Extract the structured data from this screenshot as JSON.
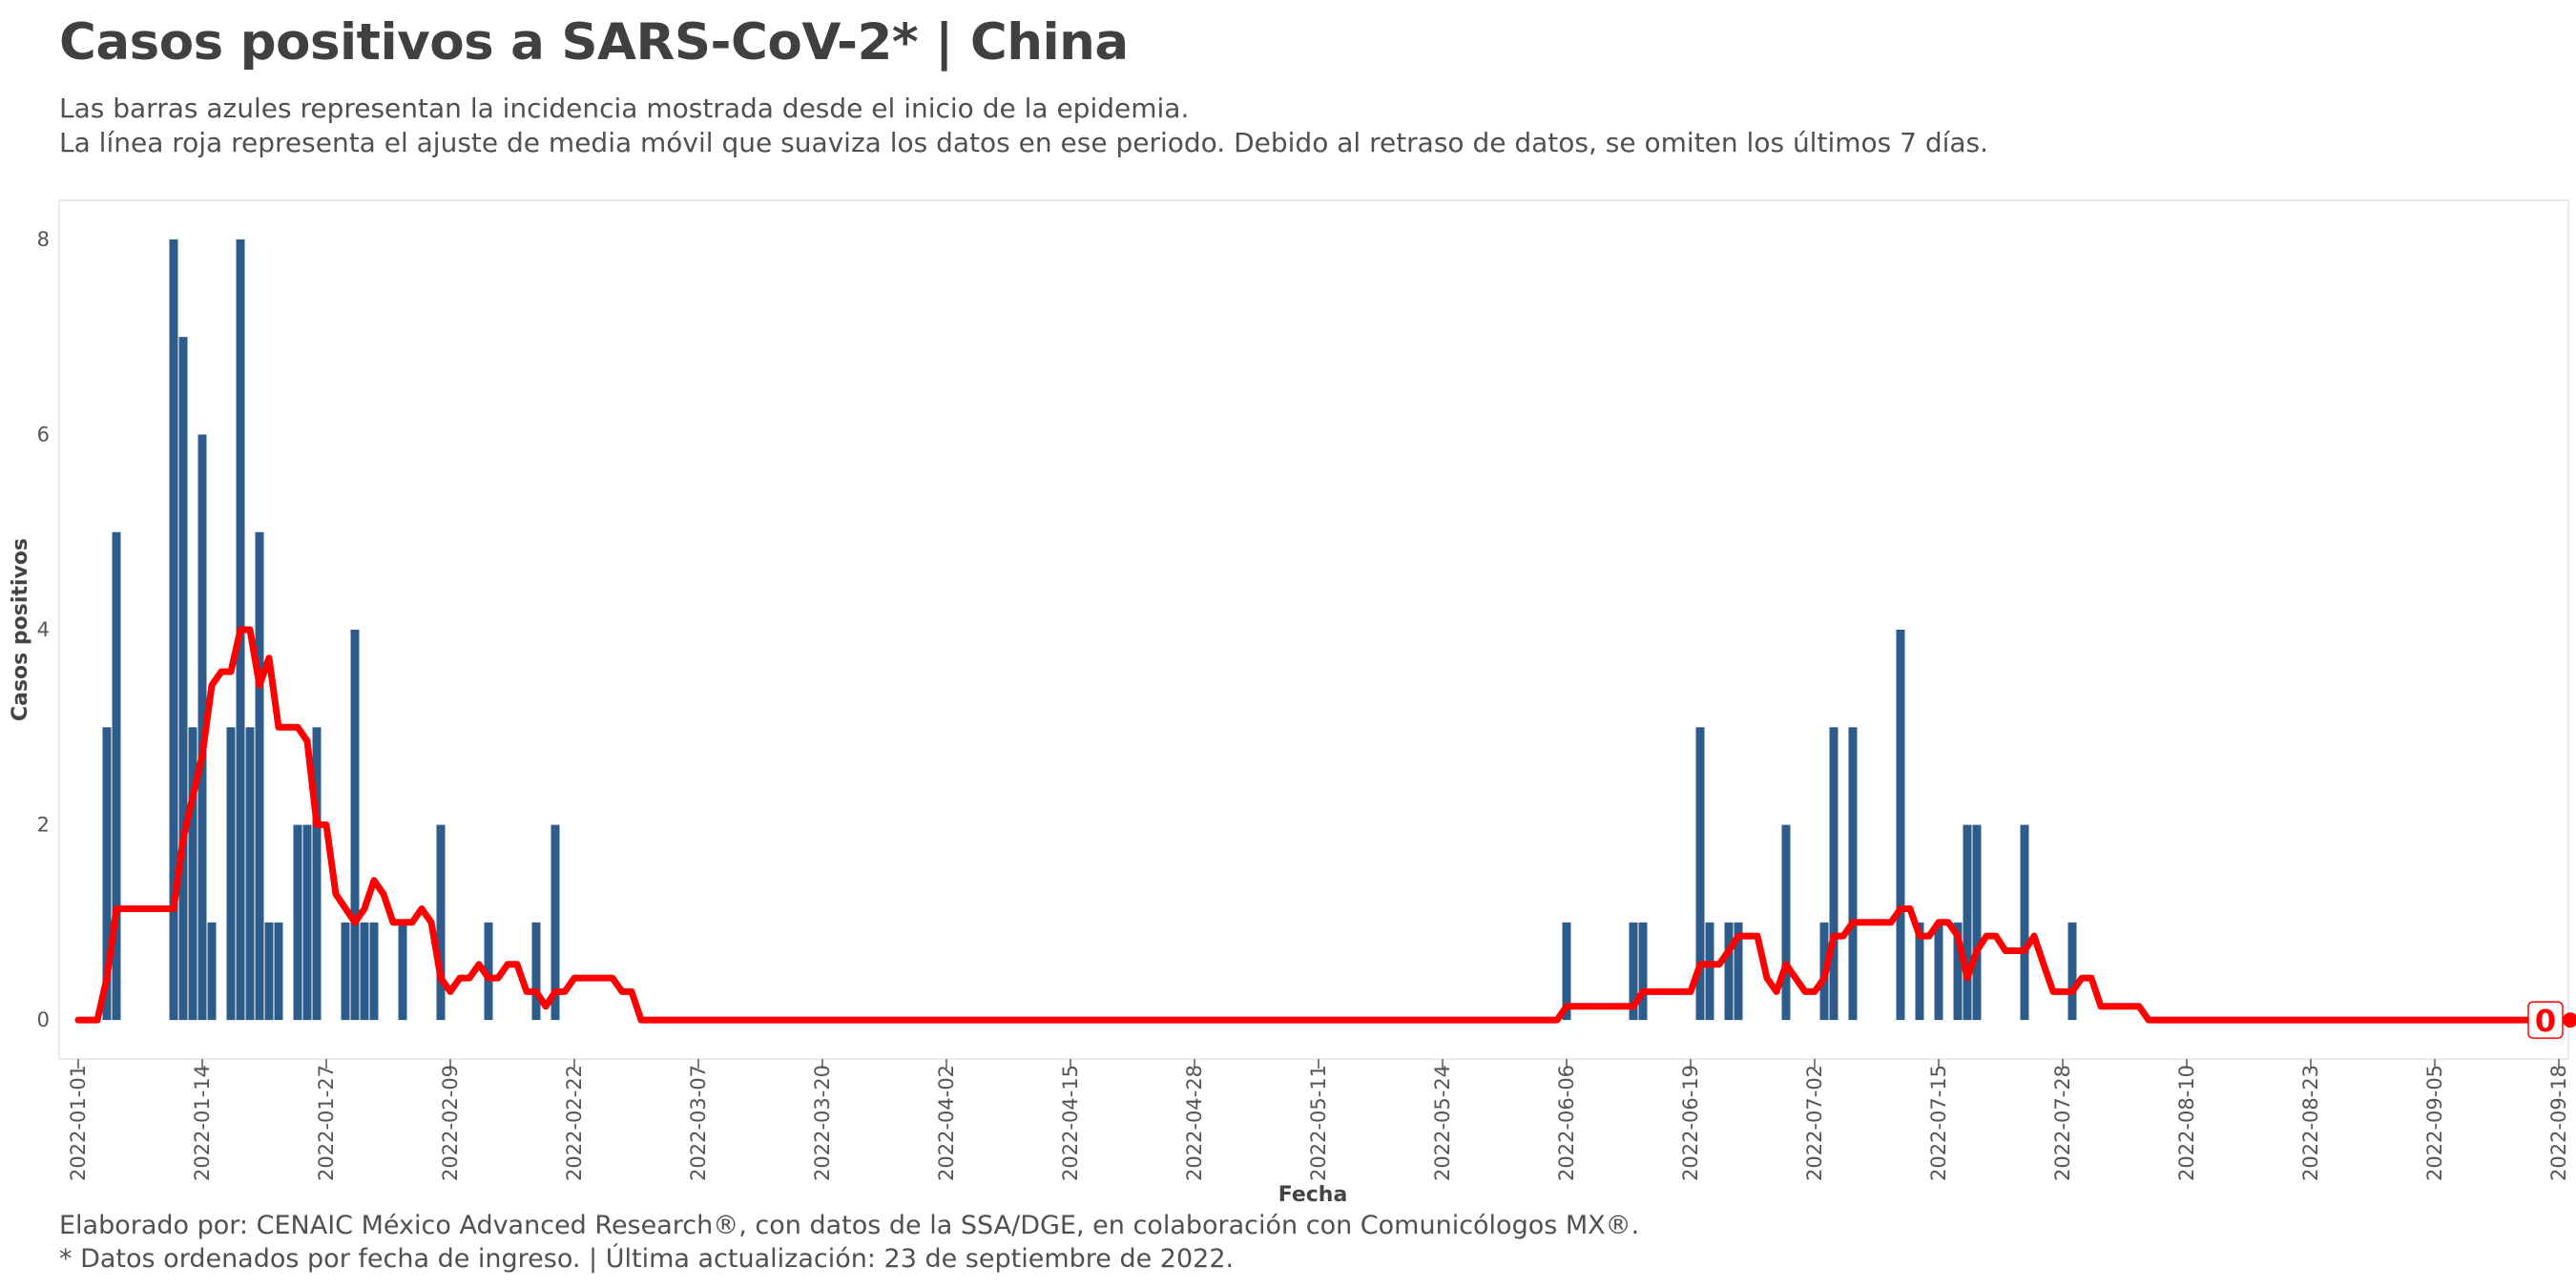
{
  "header": {
    "title": "Casos positivos a SARS-CoV-2* | China",
    "subtitle_line1": "Las barras azules representan la incidencia mostrada desde el inicio de la epidemia.",
    "subtitle_line2": "La línea roja representa el ajuste de media móvil que suaviza los datos en ese periodo. Debido al retraso de datos, se omiten los últimos 7 días."
  },
  "footer": {
    "caption_line1": "Elaborado por: CENAIC México Advanced Research®, con datos de la SSA/DGE, en colaboración con Comunicólogos MX®.",
    "caption_line2": "* Datos ordenados por fecha de ingreso. | Última actualización: 23 de septiembre de 2022."
  },
  "colors": {
    "bars": "#2d5b8a",
    "line": "#ff0000",
    "panel_border": "#e3e3e3"
  },
  "chart_data": {
    "type": "bar",
    "xlabel": "Fecha",
    "ylabel": "Casos positivos",
    "x_range": [
      "2021-12-30",
      "2022-09-19"
    ],
    "ylim": [
      -0.4,
      8.4
    ],
    "y_ticks": [
      0,
      2,
      4,
      6,
      8
    ],
    "x_ticks": [
      "2022-01-01",
      "2022-01-14",
      "2022-01-27",
      "2022-02-09",
      "2022-02-22",
      "2022-03-07",
      "2022-03-20",
      "2022-04-02",
      "2022-04-15",
      "2022-04-28",
      "2022-05-11",
      "2022-05-24",
      "2022-06-06",
      "2022-06-19",
      "2022-07-02",
      "2022-07-15",
      "2022-07-28",
      "2022-08-10",
      "2022-08-23",
      "2022-09-05",
      "2022-09-18"
    ],
    "grid": false,
    "bars": {
      "name": "Incidencia",
      "dates": [
        "2022-01-04",
        "2022-01-05",
        "2022-01-11",
        "2022-01-12",
        "2022-01-13",
        "2022-01-14",
        "2022-01-15",
        "2022-01-17",
        "2022-01-18",
        "2022-01-19",
        "2022-01-20",
        "2022-01-21",
        "2022-01-22",
        "2022-01-24",
        "2022-01-25",
        "2022-01-26",
        "2022-01-29",
        "2022-01-30",
        "2022-01-31",
        "2022-02-01",
        "2022-02-04",
        "2022-02-08",
        "2022-02-13",
        "2022-02-18",
        "2022-02-20",
        "2022-06-06",
        "2022-06-13",
        "2022-06-14",
        "2022-06-20",
        "2022-06-21",
        "2022-06-23",
        "2022-06-24",
        "2022-06-29",
        "2022-07-03",
        "2022-07-04",
        "2022-07-06",
        "2022-07-11",
        "2022-07-13",
        "2022-07-15",
        "2022-07-17",
        "2022-07-18",
        "2022-07-19",
        "2022-07-24",
        "2022-07-29"
      ],
      "values": [
        3,
        5,
        8,
        7,
        3,
        6,
        1,
        3,
        8,
        3,
        5,
        1,
        1,
        2,
        2,
        3,
        1,
        4,
        1,
        1,
        1,
        2,
        1,
        1,
        2,
        1,
        1,
        1,
        3,
        1,
        1,
        1,
        2,
        1,
        3,
        3,
        4,
        1,
        1,
        1,
        2,
        2,
        2,
        1
      ]
    },
    "moving_average": {
      "name": "Media móvil",
      "points": [
        [
          "2022-01-01",
          0
        ],
        [
          "2022-01-03",
          0
        ],
        [
          "2022-01-04",
          0.43
        ],
        [
          "2022-01-05",
          1.14
        ],
        [
          "2022-01-11",
          1.14
        ],
        [
          "2022-01-12",
          1.86
        ],
        [
          "2022-01-13",
          2.29
        ],
        [
          "2022-01-14",
          2.71
        ],
        [
          "2022-01-15",
          3.43
        ],
        [
          "2022-01-16",
          3.57
        ],
        [
          "2022-01-17",
          3.57
        ],
        [
          "2022-01-18",
          4.0
        ],
        [
          "2022-01-19",
          4.0
        ],
        [
          "2022-01-20",
          3.43
        ],
        [
          "2022-01-21",
          3.71
        ],
        [
          "2022-01-22",
          3.0
        ],
        [
          "2022-01-24",
          3.0
        ],
        [
          "2022-01-25",
          2.86
        ],
        [
          "2022-01-26",
          2.0
        ],
        [
          "2022-01-27",
          2.0
        ],
        [
          "2022-01-28",
          1.29
        ],
        [
          "2022-01-30",
          1.0
        ],
        [
          "2022-01-31",
          1.14
        ],
        [
          "2022-02-01",
          1.43
        ],
        [
          "2022-02-02",
          1.29
        ],
        [
          "2022-02-03",
          1.0
        ],
        [
          "2022-02-05",
          1.0
        ],
        [
          "2022-02-06",
          1.14
        ],
        [
          "2022-02-07",
          1.0
        ],
        [
          "2022-02-08",
          0.43
        ],
        [
          "2022-02-09",
          0.29
        ],
        [
          "2022-02-10",
          0.43
        ],
        [
          "2022-02-11",
          0.43
        ],
        [
          "2022-02-12",
          0.57
        ],
        [
          "2022-02-13",
          0.43
        ],
        [
          "2022-02-14",
          0.43
        ],
        [
          "2022-02-15",
          0.57
        ],
        [
          "2022-02-16",
          0.57
        ],
        [
          "2022-02-17",
          0.29
        ],
        [
          "2022-02-18",
          0.29
        ],
        [
          "2022-02-19",
          0.14
        ],
        [
          "2022-02-20",
          0.29
        ],
        [
          "2022-02-21",
          0.29
        ],
        [
          "2022-02-22",
          0.43
        ],
        [
          "2022-02-26",
          0.43
        ],
        [
          "2022-02-27",
          0.29
        ],
        [
          "2022-02-28",
          0.29
        ],
        [
          "2022-03-01",
          0
        ],
        [
          "2022-06-05",
          0
        ],
        [
          "2022-06-06",
          0.14
        ],
        [
          "2022-06-13",
          0.14
        ],
        [
          "2022-06-14",
          0.29
        ],
        [
          "2022-06-19",
          0.29
        ],
        [
          "2022-06-20",
          0.57
        ],
        [
          "2022-06-22",
          0.57
        ],
        [
          "2022-06-23",
          0.71
        ],
        [
          "2022-06-24",
          0.86
        ],
        [
          "2022-06-26",
          0.86
        ],
        [
          "2022-06-27",
          0.43
        ],
        [
          "2022-06-28",
          0.29
        ],
        [
          "2022-06-29",
          0.57
        ],
        [
          "2022-07-01",
          0.29
        ],
        [
          "2022-07-02",
          0.29
        ],
        [
          "2022-07-03",
          0.43
        ],
        [
          "2022-07-04",
          0.86
        ],
        [
          "2022-07-05",
          0.86
        ],
        [
          "2022-07-06",
          1.0
        ],
        [
          "2022-07-10",
          1.0
        ],
        [
          "2022-07-11",
          1.14
        ],
        [
          "2022-07-12",
          1.14
        ],
        [
          "2022-07-13",
          0.86
        ],
        [
          "2022-07-14",
          0.86
        ],
        [
          "2022-07-15",
          1.0
        ],
        [
          "2022-07-16",
          1.0
        ],
        [
          "2022-07-17",
          0.86
        ],
        [
          "2022-07-18",
          0.43
        ],
        [
          "2022-07-19",
          0.71
        ],
        [
          "2022-07-20",
          0.86
        ],
        [
          "2022-07-21",
          0.86
        ],
        [
          "2022-07-22",
          0.71
        ],
        [
          "2022-07-24",
          0.71
        ],
        [
          "2022-07-25",
          0.86
        ],
        [
          "2022-07-26",
          0.57
        ],
        [
          "2022-07-27",
          0.29
        ],
        [
          "2022-07-29",
          0.29
        ],
        [
          "2022-07-30",
          0.43
        ],
        [
          "2022-07-31",
          0.43
        ],
        [
          "2022-08-01",
          0.14
        ],
        [
          "2022-08-05",
          0.14
        ],
        [
          "2022-08-06",
          0
        ],
        [
          "2022-09-16",
          0
        ]
      ]
    },
    "end_label": {
      "date": "2022-09-16",
      "value": 0,
      "text": "0"
    }
  }
}
